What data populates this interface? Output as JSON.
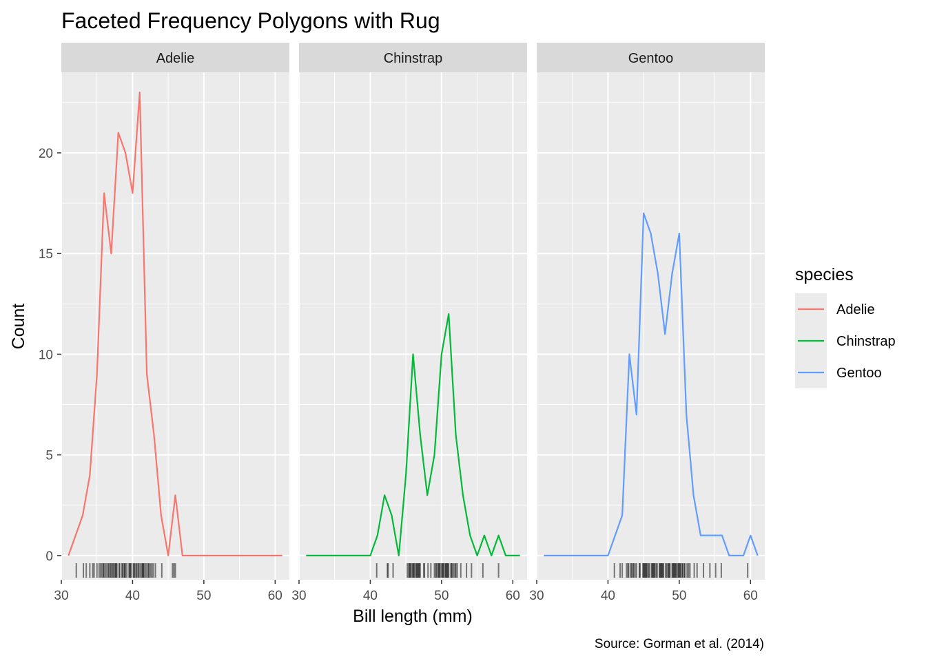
{
  "chart_data": {
    "type": "line",
    "title": "Faceted Frequency Polygons with Rug",
    "xlabel": "Bill length (mm)",
    "ylabel": "Count",
    "caption": "Source: Gorman et al. (2014)",
    "xlim": [
      30,
      62
    ],
    "ylim": [
      -1.2,
      24
    ],
    "x_ticks": [
      30,
      40,
      50,
      60
    ],
    "x_tick_labels": [
      "30",
      "40",
      "50",
      "60"
    ],
    "y_ticks": [
      0,
      5,
      10,
      15,
      20
    ],
    "y_tick_labels": [
      "0",
      "5",
      "10",
      "15",
      "20"
    ],
    "grid": true,
    "legend": {
      "title": "species",
      "position": "right",
      "entries": [
        "Adelie",
        "Chinstrap",
        "Gentoo"
      ]
    },
    "facets": [
      {
        "name": "Adelie",
        "color": "#F8766D",
        "x": [
          31,
          32,
          33,
          34,
          35,
          36,
          37,
          38,
          39,
          40,
          41,
          42,
          43,
          44,
          45,
          46,
          47,
          48,
          49,
          50,
          51,
          52,
          53,
          54,
          55,
          56,
          57,
          58,
          59,
          60,
          61
        ],
        "y": [
          0,
          1,
          2,
          4,
          9,
          18,
          15,
          21,
          20,
          18,
          23,
          9,
          6,
          2,
          0,
          3,
          0,
          0,
          0,
          0,
          0,
          0,
          0,
          0,
          0,
          0,
          0,
          0,
          0,
          0,
          0
        ],
        "rug": [
          32.1,
          33.1,
          33.5,
          34.0,
          34.4,
          34.6,
          35.0,
          35.3,
          35.5,
          35.7,
          35.9,
          36.0,
          36.2,
          36.4,
          36.6,
          36.7,
          36.9,
          37.0,
          37.2,
          37.3,
          37.5,
          37.6,
          37.7,
          37.8,
          38.1,
          38.2,
          38.5,
          38.6,
          38.8,
          38.9,
          39.0,
          39.2,
          39.5,
          39.6,
          39.7,
          39.8,
          40.1,
          40.2,
          40.3,
          40.5,
          40.6,
          40.8,
          40.9,
          41.1,
          41.3,
          41.4,
          41.5,
          41.6,
          41.8,
          42.0,
          42.2,
          42.3,
          42.5,
          42.7,
          42.9,
          43.2,
          44.1,
          45.6,
          45.8,
          46.0
        ]
      },
      {
        "name": "Chinstrap",
        "color": "#00BA38",
        "x": [
          31,
          32,
          33,
          34,
          35,
          36,
          37,
          38,
          39,
          40,
          41,
          42,
          43,
          44,
          45,
          46,
          47,
          48,
          49,
          50,
          51,
          52,
          53,
          54,
          55,
          56,
          57,
          58,
          59,
          60,
          61
        ],
        "y": [
          0,
          0,
          0,
          0,
          0,
          0,
          0,
          0,
          0,
          0,
          1,
          3,
          2,
          0,
          4,
          10,
          6,
          3,
          5,
          10,
          12,
          6,
          3,
          1,
          0,
          1,
          0,
          1,
          0,
          0,
          0
        ],
        "rug": [
          40.9,
          42.4,
          42.5,
          43.2,
          45.2,
          45.4,
          45.5,
          45.6,
          45.7,
          45.9,
          46.0,
          46.1,
          46.2,
          46.4,
          46.5,
          46.6,
          46.7,
          46.8,
          46.9,
          47.0,
          47.5,
          47.6,
          48.1,
          48.5,
          49.0,
          49.2,
          49.3,
          49.5,
          49.6,
          49.7,
          49.8,
          50.0,
          50.1,
          50.2,
          50.3,
          50.5,
          50.6,
          50.7,
          50.8,
          50.9,
          51.0,
          51.3,
          51.4,
          51.5,
          51.7,
          51.9,
          52.0,
          52.2,
          52.7,
          53.5,
          54.2,
          55.8,
          58.0
        ]
      },
      {
        "name": "Gentoo",
        "color": "#619CFF",
        "x": [
          31,
          32,
          33,
          34,
          35,
          36,
          37,
          38,
          39,
          40,
          41,
          42,
          43,
          44,
          45,
          46,
          47,
          48,
          49,
          50,
          51,
          52,
          53,
          54,
          55,
          56,
          57,
          58,
          59,
          60,
          61
        ],
        "y": [
          0,
          0,
          0,
          0,
          0,
          0,
          0,
          0,
          0,
          0,
          1,
          2,
          10,
          7,
          17,
          16,
          14,
          11,
          14,
          16,
          7,
          3,
          1,
          1,
          1,
          1,
          0,
          0,
          0,
          1,
          0
        ],
        "rug": [
          40.9,
          41.7,
          42.0,
          42.6,
          42.8,
          42.9,
          43.2,
          43.3,
          43.5,
          43.6,
          43.8,
          44.0,
          44.4,
          44.5,
          44.9,
          45.0,
          45.1,
          45.2,
          45.3,
          45.4,
          45.5,
          45.7,
          45.8,
          46.1,
          46.2,
          46.3,
          46.4,
          46.5,
          46.6,
          46.8,
          46.9,
          47.2,
          47.3,
          47.4,
          47.5,
          47.6,
          47.7,
          47.8,
          48.1,
          48.2,
          48.4,
          48.5,
          48.6,
          48.7,
          49.0,
          49.1,
          49.2,
          49.3,
          49.4,
          49.5,
          49.6,
          49.8,
          49.9,
          50.0,
          50.1,
          50.2,
          50.4,
          50.5,
          50.7,
          50.8,
          51.1,
          51.3,
          51.5,
          52.1,
          52.5,
          53.4,
          54.3,
          55.1,
          55.9,
          59.6
        ]
      }
    ]
  }
}
